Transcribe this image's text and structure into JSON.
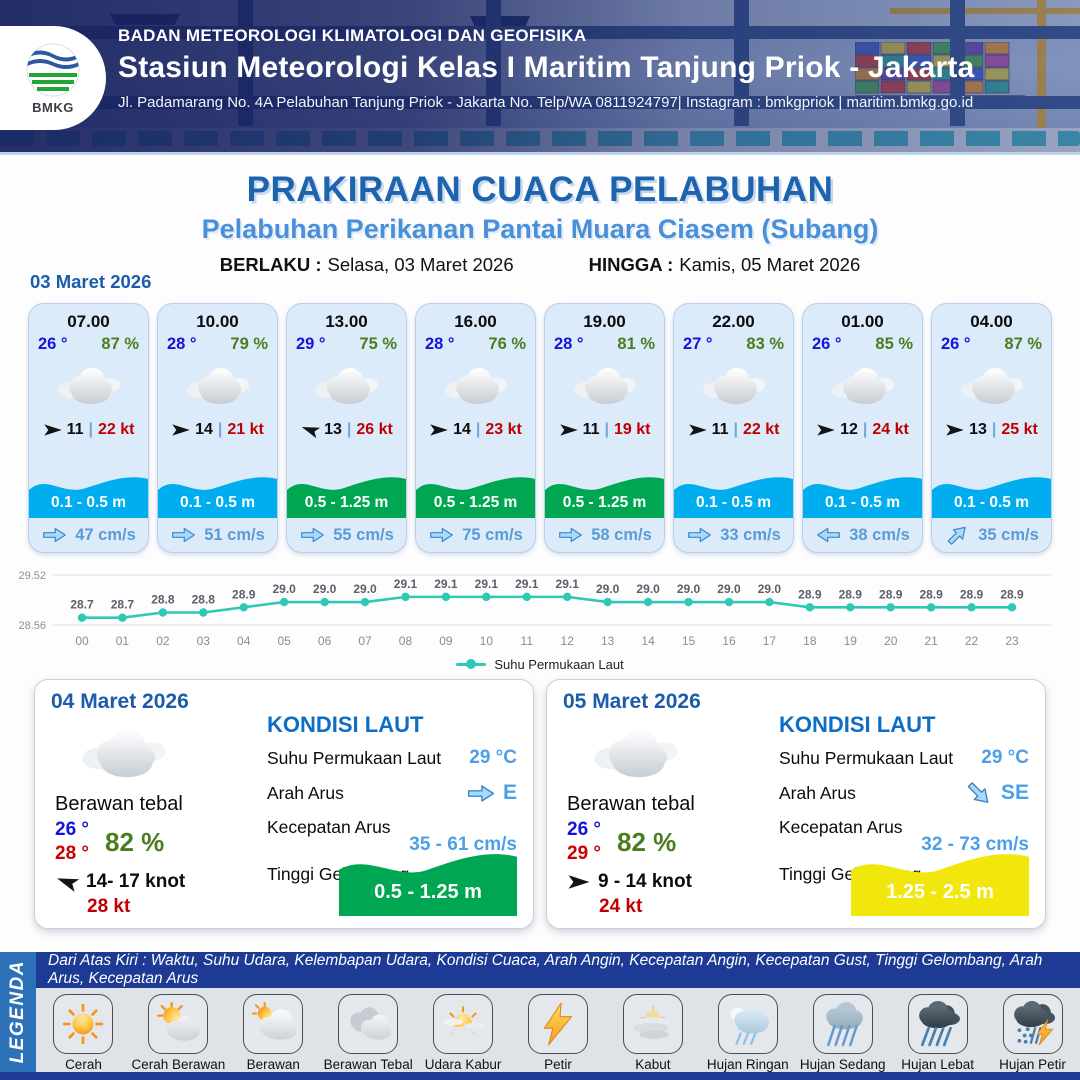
{
  "header": {
    "logo": "BMKG",
    "agency": "BADAN METEOROLOGI KLIMATOLOGI DAN GEOFISIKA",
    "station": "Stasiun Meteorologi Kelas I Maritim Tanjung Priok - Jakarta",
    "address": "Jl. Padamarang No. 4A Pelabuhan Tanjung Priok - Jakarta No. Telp/WA 0811924797| Instagram : bmkgpriok | maritim.bmkg.go.id"
  },
  "title": {
    "main": "PRAKIRAAN CUACA PELABUHAN",
    "subtitle": "Pelabuhan Perikanan Pantai Muara Ciasem (Subang)",
    "valid_from_label": "BERLAKU :",
    "valid_from": "Selasa, 03 Maret 2026",
    "valid_to_label": "HINGGA :",
    "valid_to": "Kamis, 05 Maret 2026"
  },
  "hourly": {
    "date": "03 Maret 2026",
    "sep": "|",
    "cards": [
      {
        "time": "07.00",
        "temp": "26 °",
        "humidity": "87 %",
        "icon": "berawan-tebal",
        "wind_dir": "E",
        "wind": "11",
        "gust": "22 kt",
        "wave": "0.1 - 0.5 m",
        "wave_color": "blue",
        "current_dir": "E",
        "current": "47 cm/s"
      },
      {
        "time": "10.00",
        "temp": "28 °",
        "humidity": "79 %",
        "icon": "berawan-tebal",
        "wind_dir": "E",
        "wind": "14",
        "gust": "21 kt",
        "wave": "0.1 - 0.5 m",
        "wave_color": "blue",
        "current_dir": "E",
        "current": "51 cm/s"
      },
      {
        "time": "13.00",
        "temp": "29 °",
        "humidity": "75 %",
        "icon": "berawan-tebal",
        "wind_dir": "WNW",
        "wind": "13",
        "gust": "26 kt",
        "wave": "0.5 - 1.25 m",
        "wave_color": "green",
        "current_dir": "E",
        "current": "55 cm/s"
      },
      {
        "time": "16.00",
        "temp": "28 °",
        "humidity": "76 %",
        "icon": "berawan-tebal",
        "wind_dir": "E",
        "wind": "14",
        "gust": "23 kt",
        "wave": "0.5 - 1.25 m",
        "wave_color": "green",
        "current_dir": "E",
        "current": "75 cm/s"
      },
      {
        "time": "19.00",
        "temp": "28 °",
        "humidity": "81 %",
        "icon": "berawan-tebal",
        "wind_dir": "E",
        "wind": "11",
        "gust": "19 kt",
        "wave": "0.5 - 1.25 m",
        "wave_color": "green",
        "current_dir": "E",
        "current": "58 cm/s"
      },
      {
        "time": "22.00",
        "temp": "27 °",
        "humidity": "83 %",
        "icon": "berawan-tebal",
        "wind_dir": "E",
        "wind": "11",
        "gust": "22 kt",
        "wave": "0.1 - 0.5 m",
        "wave_color": "blue",
        "current_dir": "E",
        "current": "33 cm/s"
      },
      {
        "time": "01.00",
        "temp": "26 °",
        "humidity": "85 %",
        "icon": "berawan-tebal",
        "wind_dir": "E",
        "wind": "12",
        "gust": "24 kt",
        "wave": "0.1 - 0.5 m",
        "wave_color": "blue",
        "current_dir": "W",
        "current": "38 cm/s"
      },
      {
        "time": "04.00",
        "temp": "26 °",
        "humidity": "87 %",
        "icon": "berawan-tebal",
        "wind_dir": "E",
        "wind": "13",
        "gust": "25 kt",
        "wave": "0.1 - 0.5 m",
        "wave_color": "blue",
        "current_dir": "NE",
        "current": "35 cm/s"
      }
    ]
  },
  "chart_data": {
    "type": "line",
    "x": [
      "00",
      "01",
      "02",
      "03",
      "04",
      "05",
      "06",
      "07",
      "08",
      "09",
      "10",
      "11",
      "12",
      "13",
      "14",
      "15",
      "16",
      "17",
      "18",
      "19",
      "20",
      "21",
      "22",
      "23"
    ],
    "series": [
      {
        "name": "Suhu Permukaan Laut",
        "values": [
          28.7,
          28.7,
          28.8,
          28.8,
          28.9,
          29.0,
          29.0,
          29.0,
          29.1,
          29.1,
          29.1,
          29.1,
          29.1,
          29.0,
          29.0,
          29.0,
          29.0,
          29.0,
          28.9,
          28.9,
          28.9,
          28.9,
          28.9,
          28.9
        ]
      }
    ],
    "ylim": [
      28.56,
      29.52
    ],
    "ytick_labels": [
      "29.52",
      "28.56"
    ],
    "grid": true,
    "legend_position": "bottom",
    "line_color": "#2ec9b4"
  },
  "daily": [
    {
      "date": "04 Maret 2026",
      "condition": "Berawan tebal",
      "temp_min": "26 °",
      "temp_max": "28 °",
      "humidity": "82 %",
      "wind_dir": "WNW",
      "wind_range": "14- 17 knot",
      "gust": "28 kt",
      "sea": {
        "title": "KONDISI LAUT",
        "sst_label": "Suhu Permukaan Laut",
        "sst": "29 °C",
        "dir_label": "Arah Arus",
        "dir": "E",
        "speed_label": "Kecepatan Arus",
        "speed": "35 - 61 cm/s",
        "wave_label": "Tinggi Gelombang",
        "wave": "0.5 - 1.25 m",
        "wave_color": "green"
      }
    },
    {
      "date": "05 Maret 2026",
      "condition": "Berawan tebal",
      "temp_min": "26 °",
      "temp_max": "29 °",
      "humidity": "82 %",
      "wind_dir": "E",
      "wind_range": "9 - 14 knot",
      "gust": "24 kt",
      "sea": {
        "title": "KONDISI LAUT",
        "sst_label": "Suhu Permukaan Laut",
        "sst": "29 °C",
        "dir_label": "Arah Arus",
        "dir": "SE",
        "speed_label": "Kecepatan Arus",
        "speed": "32 - 73 cm/s",
        "wave_label": "Tinggi Gelombang",
        "wave": "1.25 - 2.5 m",
        "wave_color": "yellow"
      }
    }
  ],
  "legend": {
    "title": "LEGENDA",
    "note": "Dari Atas Kiri : Waktu, Suhu Udara, Kelembapan Udara, Kondisi Cuaca, Arah Angin, Kecepatan Angin, Kecepatan Gust, Tinggi Gelombang, Arah Arus, Kecepatan Arus",
    "items": [
      {
        "label": "Cerah",
        "icon": "cerah"
      },
      {
        "label": "Cerah Berawan",
        "icon": "cerah-berawan"
      },
      {
        "label": "Berawan",
        "icon": "berawan"
      },
      {
        "label": "Berawan Tebal",
        "icon": "berawan-tebal"
      },
      {
        "label": "Udara Kabur",
        "icon": "udara-kabur"
      },
      {
        "label": "Petir",
        "icon": "petir"
      },
      {
        "label": "Kabut",
        "icon": "kabut"
      },
      {
        "label": "Hujan Ringan",
        "icon": "hujan-ringan"
      },
      {
        "label": "Hujan Sedang",
        "icon": "hujan-sedang"
      },
      {
        "label": "Hujan Lebat",
        "icon": "hujan-lebat"
      },
      {
        "label": "Hujan Petir",
        "icon": "hujan-petir"
      }
    ]
  },
  "colors": {
    "title_blue": "#1e63ae",
    "subtitle_blue": "#4a90d9",
    "temp_blue": "#1414dd",
    "temp_red": "#cc0000",
    "humidity_green": "#4a7d1e",
    "gust_red": "#c00000",
    "wave_blue": "#00aeef",
    "wave_green": "#00a651",
    "wave_yellow": "#f2e70c",
    "current_text": "#5b9bd5",
    "chart_line": "#2ec9b4",
    "sea_value_blue": "#4da0e8",
    "legend_navy": "#1d3a94",
    "legend_strip_blue": "#2d72b8"
  }
}
